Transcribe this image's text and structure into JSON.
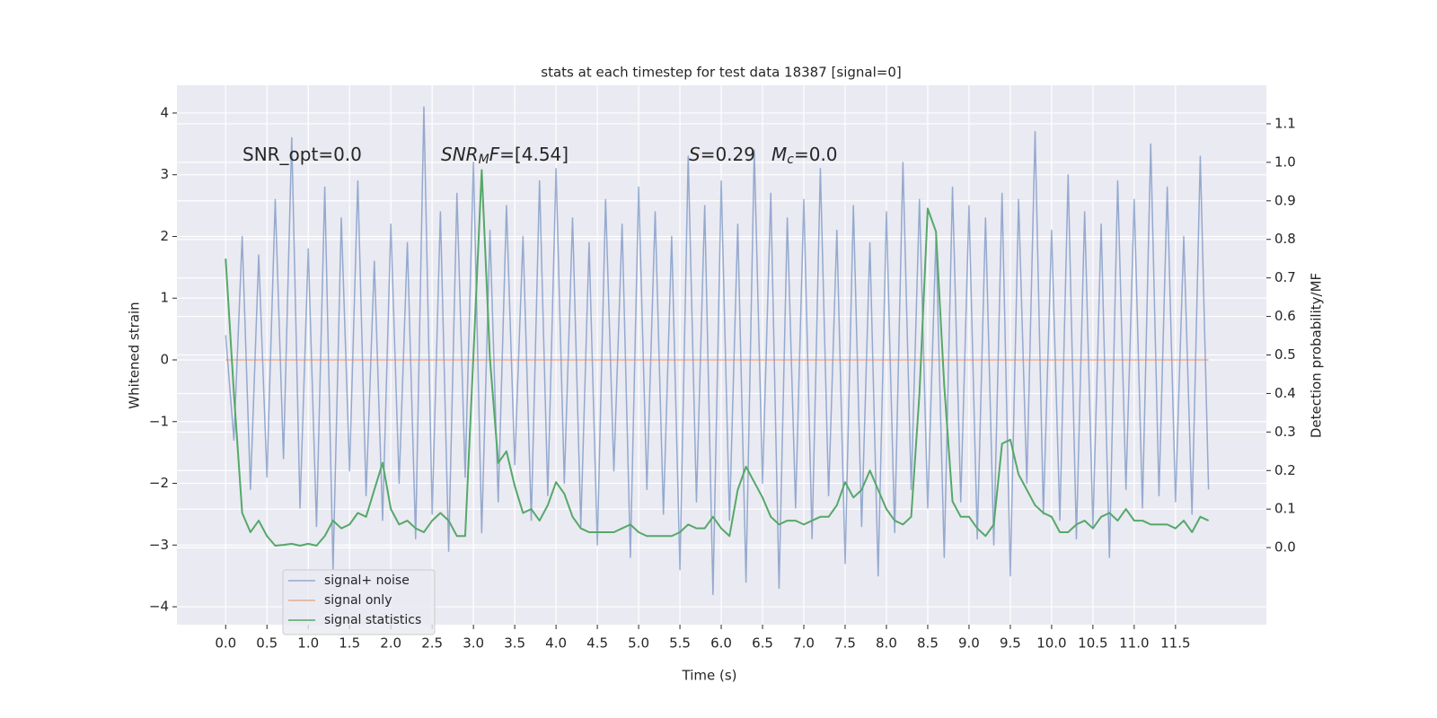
{
  "chart_data": {
    "type": "line",
    "title": "stats at each timestep for test data 18387 [signal=0]",
    "xlabel": "Time (s)",
    "ylabel": "Whitened strain",
    "y2label": "Detection probability/MF",
    "annotations": [
      [
        "SNR_opt=0.0"
      ],
      [
        "SNR",
        "M",
        "F",
        "=[4.54]"
      ],
      [
        "S",
        "=0.29",
        "M",
        "c",
        "=0.0"
      ]
    ],
    "xlim": [
      -0.59,
      12.6
    ],
    "ylim": [
      -4.29,
      4.45
    ],
    "y2lim": [
      -0.2,
      1.2
    ],
    "xticks": [
      {
        "value": 0,
        "label": "0.0"
      },
      0.5,
      {
        "value": 1,
        "label": "1.0"
      },
      1.5,
      {
        "value": 2,
        "label": "2.0"
      },
      2.5,
      {
        "value": 3,
        "label": "3.0"
      },
      3.5,
      {
        "value": 4,
        "label": "4.0"
      },
      4.5,
      {
        "value": 5,
        "label": "5.0"
      },
      5.5,
      {
        "value": 6,
        "label": "6.0"
      },
      6.5,
      {
        "value": 7,
        "label": "7.0"
      },
      7.5,
      {
        "value": 8,
        "label": "8.0"
      },
      8.5,
      {
        "value": 9,
        "label": "9.0"
      },
      9.5,
      {
        "value": 10,
        "label": "10.0"
      },
      10.5,
      {
        "value": 11,
        "label": "11.0"
      },
      11.5
    ],
    "yticks": [
      {
        "value": -4,
        "label": "−4"
      },
      {
        "value": -3,
        "label": "−3"
      },
      {
        "value": -2,
        "label": "−2"
      },
      {
        "value": -1,
        "label": "−1"
      },
      0,
      1,
      2,
      3,
      4
    ],
    "y2ticks": [
      {
        "value": 0,
        "label": "0.0"
      },
      0.1,
      0.2,
      0.3,
      0.4,
      0.5,
      0.6,
      0.7,
      0.8,
      0.9,
      {
        "value": 1,
        "label": "1.0"
      },
      1.1
    ],
    "grid": true,
    "legend": "lower left",
    "x": [
      0,
      0.1,
      0.2,
      0.3,
      0.4,
      0.5,
      0.6,
      0.7,
      0.8,
      0.9,
      1,
      1.1,
      1.2,
      1.3,
      1.4,
      1.5,
      1.6,
      1.7,
      1.8,
      1.9,
      2,
      2.1,
      2.2,
      2.3,
      2.4,
      2.5,
      2.6,
      2.7,
      2.8,
      2.9,
      3,
      3.1,
      3.2,
      3.3,
      3.4,
      3.5,
      3.6,
      3.7,
      3.8,
      3.9,
      4,
      4.1,
      4.2,
      4.3,
      4.4,
      4.5,
      4.6,
      4.7,
      4.8,
      4.9,
      5,
      5.1,
      5.2,
      5.3,
      5.4,
      5.5,
      5.6,
      5.7,
      5.8,
      5.9,
      6,
      6.1,
      6.2,
      6.3,
      6.4,
      6.5,
      6.6,
      6.7,
      6.8,
      6.9,
      7,
      7.1,
      7.2,
      7.3,
      7.4,
      7.5,
      7.6,
      7.7,
      7.8,
      7.9,
      8,
      8.1,
      8.2,
      8.3,
      8.4,
      8.5,
      8.6,
      8.7,
      8.8,
      8.9,
      9,
      9.1,
      9.2,
      9.3,
      9.4,
      9.5,
      9.6,
      9.7,
      9.8,
      9.9,
      10,
      10.1,
      10.2,
      10.3,
      10.4,
      10.5,
      10.6,
      10.7,
      10.8,
      10.9,
      11,
      11.1,
      11.2,
      11.3,
      11.4,
      11.5,
      11.6,
      11.7,
      11.8,
      11.9
    ],
    "series": [
      {
        "name": "signal+ noise",
        "color": "#4c72b0",
        "values": [
          0.4,
          -1.3,
          2.0,
          -2.1,
          1.7,
          -1.9,
          2.6,
          -1.6,
          3.6,
          -2.4,
          1.8,
          -2.7,
          2.8,
          -3.4,
          2.3,
          -1.8,
          2.9,
          -2.2,
          1.6,
          -2.6,
          2.2,
          -2.0,
          1.9,
          -2.9,
          4.1,
          -2.5,
          2.4,
          -3.1,
          2.7,
          -1.9,
          3.2,
          -2.8,
          2.1,
          -2.3,
          2.5,
          -1.7,
          2.0,
          -2.6,
          2.9,
          -2.2,
          3.1,
          -2.0,
          2.3,
          -2.7,
          1.9,
          -3.0,
          2.6,
          -1.8,
          2.2,
          -3.2,
          2.8,
          -2.1,
          2.4,
          -2.5,
          2.0,
          -3.4,
          3.3,
          -2.3,
          2.5,
          -3.8,
          2.9,
          -2.6,
          2.2,
          -3.6,
          3.4,
          -2.0,
          2.7,
          -3.7,
          2.3,
          -2.4,
          2.6,
          -2.9,
          3.1,
          -2.2,
          2.1,
          -3.3,
          2.5,
          -2.7,
          1.9,
          -3.5,
          2.4,
          -2.8,
          3.2,
          -2.1,
          2.6,
          -2.4,
          2.0,
          -3.2,
          2.8,
          -2.3,
          2.5,
          -2.9,
          2.3,
          -3.0,
          2.7,
          -3.5,
          2.6,
          -2.0,
          3.7,
          -2.5,
          2.1,
          -2.6,
          3.0,
          -2.9,
          2.4,
          -2.7,
          2.2,
          -3.2,
          2.9,
          -2.1,
          2.6,
          -2.4,
          3.5,
          -2.2,
          2.8,
          -2.3,
          2.0,
          -2.5,
          3.3,
          -2.1
        ]
      },
      {
        "name": "signal only",
        "color": "#dd8452",
        "values": [
          0,
          0,
          0,
          0,
          0,
          0,
          0,
          0,
          0,
          0,
          0,
          0,
          0,
          0,
          0,
          0,
          0,
          0,
          0,
          0,
          0,
          0,
          0,
          0,
          0,
          0,
          0,
          0,
          0,
          0,
          0,
          0,
          0,
          0,
          0,
          0,
          0,
          0,
          0,
          0,
          0,
          0,
          0,
          0,
          0,
          0,
          0,
          0,
          0,
          0,
          0,
          0,
          0,
          0,
          0,
          0,
          0,
          0,
          0,
          0,
          0,
          0,
          0,
          0,
          0,
          0,
          0,
          0,
          0,
          0,
          0,
          0,
          0,
          0,
          0,
          0,
          0,
          0,
          0,
          0,
          0,
          0,
          0,
          0,
          0,
          0,
          0,
          0,
          0,
          0,
          0,
          0,
          0,
          0,
          0,
          0,
          0,
          0,
          0,
          0,
          0,
          0,
          0,
          0,
          0,
          0,
          0,
          0,
          0,
          0,
          0,
          0,
          0,
          0,
          0,
          0,
          0,
          0,
          0,
          0
        ]
      },
      {
        "name": "signal statistics",
        "color": "#55a868",
        "axis": "y2",
        "values": [
          0.75,
          0.4,
          0.09,
          0.04,
          0.07,
          0.03,
          0.005,
          0.007,
          0.01,
          0.005,
          0.01,
          0.005,
          0.03,
          0.07,
          0.05,
          0.06,
          0.09,
          0.08,
          0.15,
          0.22,
          0.1,
          0.06,
          0.07,
          0.05,
          0.04,
          0.07,
          0.09,
          0.07,
          0.03,
          0.03,
          0.5,
          0.98,
          0.49,
          0.22,
          0.25,
          0.16,
          0.09,
          0.1,
          0.07,
          0.11,
          0.17,
          0.14,
          0.08,
          0.05,
          0.04,
          0.04,
          0.04,
          0.04,
          0.05,
          0.06,
          0.04,
          0.03,
          0.03,
          0.03,
          0.03,
          0.04,
          0.06,
          0.05,
          0.05,
          0.08,
          0.05,
          0.03,
          0.15,
          0.21,
          0.17,
          0.13,
          0.08,
          0.06,
          0.07,
          0.07,
          0.06,
          0.07,
          0.08,
          0.08,
          0.11,
          0.17,
          0.13,
          0.15,
          0.2,
          0.15,
          0.1,
          0.07,
          0.06,
          0.08,
          0.4,
          0.88,
          0.82,
          0.42,
          0.12,
          0.08,
          0.08,
          0.05,
          0.03,
          0.06,
          0.27,
          0.28,
          0.19,
          0.15,
          0.11,
          0.09,
          0.08,
          0.04,
          0.04,
          0.06,
          0.07,
          0.05,
          0.08,
          0.09,
          0.07,
          0.1,
          0.07,
          0.07,
          0.06,
          0.06,
          0.06,
          0.05,
          0.07,
          0.04,
          0.08,
          0.07
        ]
      }
    ]
  }
}
